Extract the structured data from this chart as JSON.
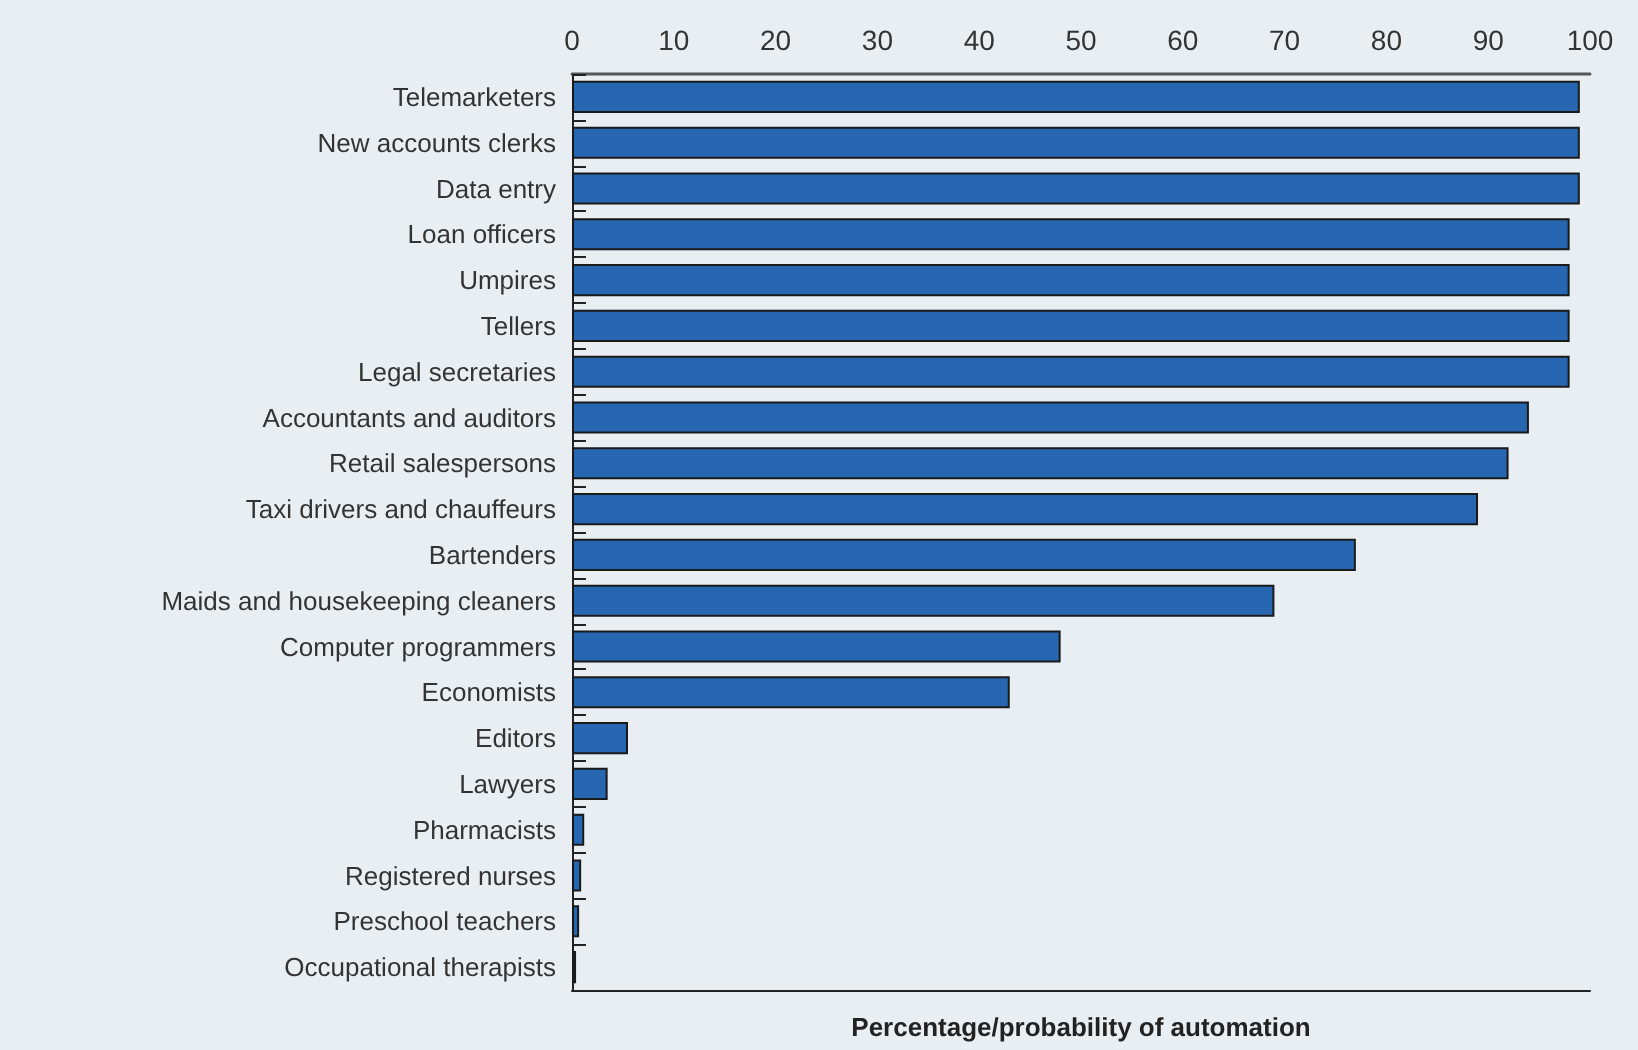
{
  "chart_data": {
    "type": "bar",
    "orientation": "horizontal",
    "xlabel": "Percentage/probability of automation",
    "categories": [
      "Telemarketers",
      "New accounts clerks",
      "Data entry",
      "Loan officers",
      "Umpires",
      "Tellers",
      "Legal secretaries",
      "Accountants and auditors",
      "Retail salespersons",
      "Taxi drivers and chauffeurs",
      "Bartenders",
      "Maids and housekeeping cleaners",
      "Computer programmers",
      "Economists",
      "Editors",
      "Lawyers",
      "Pharmacists",
      "Registered nurses",
      "Preschool teachers",
      "Occupational therapists"
    ],
    "values": [
      99,
      99,
      99,
      98,
      98,
      98,
      98,
      94,
      92,
      89,
      77,
      69,
      48,
      43,
      5.5,
      3.5,
      1.2,
      0.9,
      0.7,
      0.4
    ],
    "color": "#2767b1",
    "xlim": [
      0,
      100
    ],
    "xticks": [
      0,
      10,
      20,
      30,
      40,
      50,
      60,
      70,
      80,
      90,
      100
    ]
  }
}
